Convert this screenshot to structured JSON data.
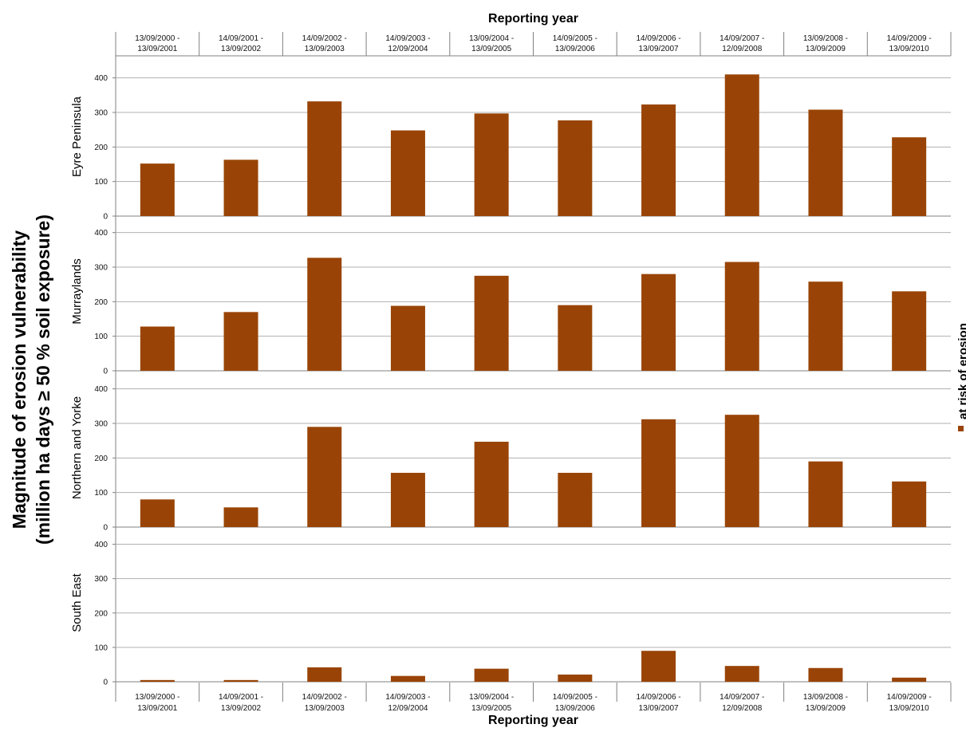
{
  "chart_data": {
    "type": "bar",
    "xlabel": "Reporting year",
    "ylabel_lines": [
      "Magnitude of erosion vulnerability",
      "(million ha days ≥ 50 % soil exposure)"
    ],
    "legend": {
      "label": "at risk of erosion",
      "position": "right"
    },
    "bar_color": "#994406",
    "ylim": [
      0,
      450
    ],
    "yticks": [
      0,
      100,
      200,
      300,
      400
    ],
    "grid": true,
    "categories": [
      [
        "13/09/2000 -",
        "13/09/2001"
      ],
      [
        "14/09/2001 -",
        "13/09/2002"
      ],
      [
        "14/09/2002 -",
        "13/09/2003"
      ],
      [
        "14/09/2003 -",
        "12/09/2004"
      ],
      [
        "13/09/2004 -",
        "13/09/2005"
      ],
      [
        "14/09/2005 -",
        "13/09/2006"
      ],
      [
        "14/09/2006 -",
        "13/09/2007"
      ],
      [
        "14/09/2007 -",
        "12/09/2008"
      ],
      [
        "13/09/2008 -",
        "13/09/2009"
      ],
      [
        "14/09/2009 -",
        "13/09/2010"
      ]
    ],
    "panels": [
      {
        "name": "Eyre Peninsula",
        "values": [
          152,
          163,
          332,
          248,
          297,
          277,
          323,
          410,
          308,
          228
        ]
      },
      {
        "name": "Murraylands",
        "values": [
          128,
          170,
          327,
          188,
          275,
          190,
          280,
          315,
          258,
          230
        ]
      },
      {
        "name": "Northern and Yorke",
        "values": [
          80,
          57,
          290,
          157,
          247,
          157,
          312,
          325,
          190,
          132
        ]
      },
      {
        "name": "South East",
        "values": [
          5,
          5,
          42,
          17,
          38,
          21,
          90,
          46,
          40,
          12
        ]
      }
    ]
  }
}
